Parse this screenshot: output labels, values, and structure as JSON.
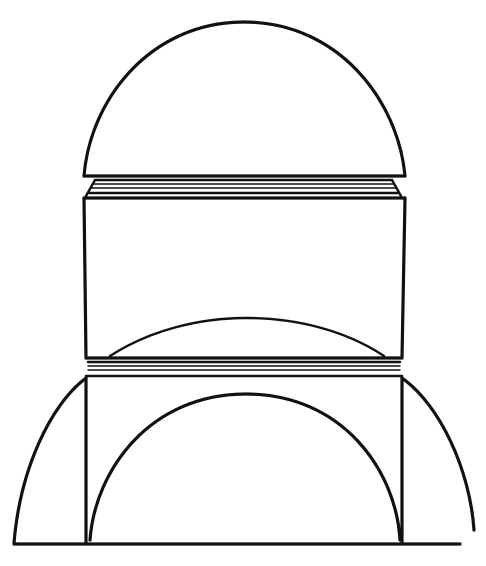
{
  "figure": {
    "description_visible_text": "",
    "stroke_color": "#111111",
    "background_color": "#ffffff"
  }
}
